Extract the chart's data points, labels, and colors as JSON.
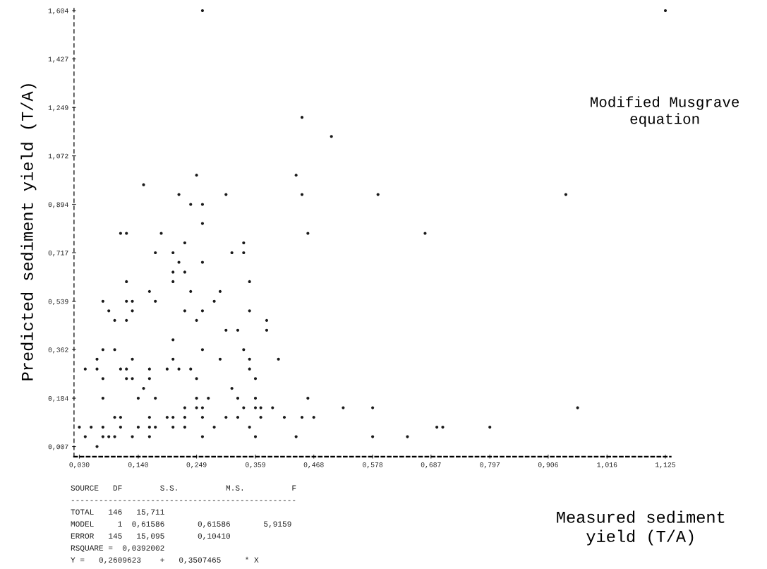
{
  "chart_data": {
    "type": "scatter",
    "title": "Modified Musgrave\nequation",
    "xlabel": "Measured sediment\nyield (T/A)",
    "ylabel": "Predicted sediment yield (T/A)",
    "color": "#1a1a1a",
    "marker": "circle",
    "grid": false,
    "xlim": [
      0.02,
      1.135
    ],
    "ylim": [
      -0.03,
      1.62
    ],
    "xticks": [
      {
        "value": 0.03,
        "label": "0,030"
      },
      {
        "value": 0.14,
        "label": "0,140"
      },
      {
        "value": 0.249,
        "label": "0,249"
      },
      {
        "value": 0.359,
        "label": "0,359"
      },
      {
        "value": 0.468,
        "label": "0,468"
      },
      {
        "value": 0.578,
        "label": "0,578"
      },
      {
        "value": 0.687,
        "label": "0,687"
      },
      {
        "value": 0.797,
        "label": "0,797"
      },
      {
        "value": 0.906,
        "label": "0,906"
      },
      {
        "value": 1.016,
        "label": "1,016"
      },
      {
        "value": 1.125,
        "label": "1,125"
      }
    ],
    "yticks": [
      {
        "value": 0.007,
        "label": "0,007"
      },
      {
        "value": 0.184,
        "label": "0,184"
      },
      {
        "value": 0.362,
        "label": "0,362"
      },
      {
        "value": 0.539,
        "label": "0,539"
      },
      {
        "value": 0.717,
        "label": "0,717"
      },
      {
        "value": 0.894,
        "label": "0,894"
      },
      {
        "value": 1.072,
        "label": "1,072"
      },
      {
        "value": 1.249,
        "label": "1,249"
      },
      {
        "value": 1.427,
        "label": "1,427"
      },
      {
        "value": 1.604,
        "label": "1,604"
      }
    ],
    "x": [
      0.063,
      0.041,
      0.074,
      0.085,
      0.096,
      0.129,
      0.161,
      0.26,
      0.359,
      0.435,
      0.578,
      0.643,
      0.03,
      0.052,
      0.074,
      0.107,
      0.14,
      0.161,
      0.172,
      0.205,
      0.227,
      0.282,
      0.348,
      0.698,
      0.709,
      0.797,
      0.096,
      0.107,
      0.161,
      0.194,
      0.205,
      0.227,
      0.26,
      0.304,
      0.326,
      0.369,
      0.413,
      0.446,
      0.468,
      0.227,
      0.249,
      0.26,
      0.337,
      0.359,
      0.369,
      0.391,
      0.523,
      0.578,
      0.961,
      0.074,
      0.14,
      0.172,
      0.249,
      0.271,
      0.326,
      0.359,
      0.457,
      0.15,
      0.315,
      0.074,
      0.118,
      0.129,
      0.161,
      0.249,
      0.359,
      0.041,
      0.063,
      0.107,
      0.118,
      0.161,
      0.194,
      0.216,
      0.238,
      0.348,
      0.063,
      0.129,
      0.205,
      0.293,
      0.348,
      0.402,
      0.074,
      0.096,
      0.26,
      0.337,
      0.205,
      0.304,
      0.326,
      0.38,
      0.096,
      0.118,
      0.249,
      0.38,
      0.085,
      0.129,
      0.227,
      0.26,
      0.348,
      0.074,
      0.118,
      0.129,
      0.172,
      0.282,
      0.161,
      0.238,
      0.293,
      0.118,
      0.205,
      0.348,
      0.205,
      0.227,
      0.216,
      0.26,
      0.172,
      0.205,
      0.315,
      0.337,
      0.227,
      0.337,
      0.107,
      0.118,
      0.183,
      0.457,
      0.676,
      0.26,
      0.238,
      0.26,
      0.216,
      0.304,
      0.446,
      0.588,
      0.939,
      0.15,
      0.249,
      0.435,
      0.501,
      0.446,
      0.26,
      1.125
    ],
    "values": [
      0.007,
      0.043,
      0.043,
      0.043,
      0.043,
      0.043,
      0.043,
      0.043,
      0.043,
      0.043,
      0.043,
      0.043,
      0.078,
      0.078,
      0.078,
      0.078,
      0.078,
      0.078,
      0.078,
      0.078,
      0.078,
      0.078,
      0.078,
      0.078,
      0.078,
      0.078,
      0.114,
      0.114,
      0.114,
      0.114,
      0.114,
      0.114,
      0.114,
      0.114,
      0.114,
      0.114,
      0.114,
      0.114,
      0.114,
      0.149,
      0.149,
      0.149,
      0.149,
      0.149,
      0.149,
      0.149,
      0.149,
      0.149,
      0.149,
      0.184,
      0.184,
      0.184,
      0.184,
      0.184,
      0.184,
      0.184,
      0.184,
      0.22,
      0.22,
      0.256,
      0.256,
      0.256,
      0.256,
      0.256,
      0.256,
      0.291,
      0.291,
      0.291,
      0.291,
      0.291,
      0.291,
      0.291,
      0.291,
      0.291,
      0.327,
      0.327,
      0.327,
      0.327,
      0.327,
      0.327,
      0.362,
      0.362,
      0.362,
      0.362,
      0.398,
      0.433,
      0.433,
      0.433,
      0.469,
      0.469,
      0.469,
      0.469,
      0.504,
      0.504,
      0.504,
      0.504,
      0.504,
      0.539,
      0.539,
      0.539,
      0.539,
      0.539,
      0.575,
      0.575,
      0.575,
      0.611,
      0.611,
      0.611,
      0.646,
      0.646,
      0.682,
      0.682,
      0.717,
      0.717,
      0.717,
      0.717,
      0.753,
      0.753,
      0.788,
      0.788,
      0.788,
      0.788,
      0.788,
      0.824,
      0.894,
      0.894,
      0.93,
      0.93,
      0.93,
      0.93,
      0.93,
      0.966,
      1.001,
      1.001,
      1.143,
      1.213,
      1.604,
      1.604
    ],
    "annotations": [
      "SOURCE   DF        S.S.          M.S.          F",
      "------------------------------------------------",
      "TOTAL   146   15,711",
      "MODEL     1  0,61586       0,61586       5,9159",
      "ERROR   145   15,095       0,10410",
      "RSQUARE =  0,0392002",
      "Y =   0,2609623    +   0,3507465     * X"
    ]
  }
}
